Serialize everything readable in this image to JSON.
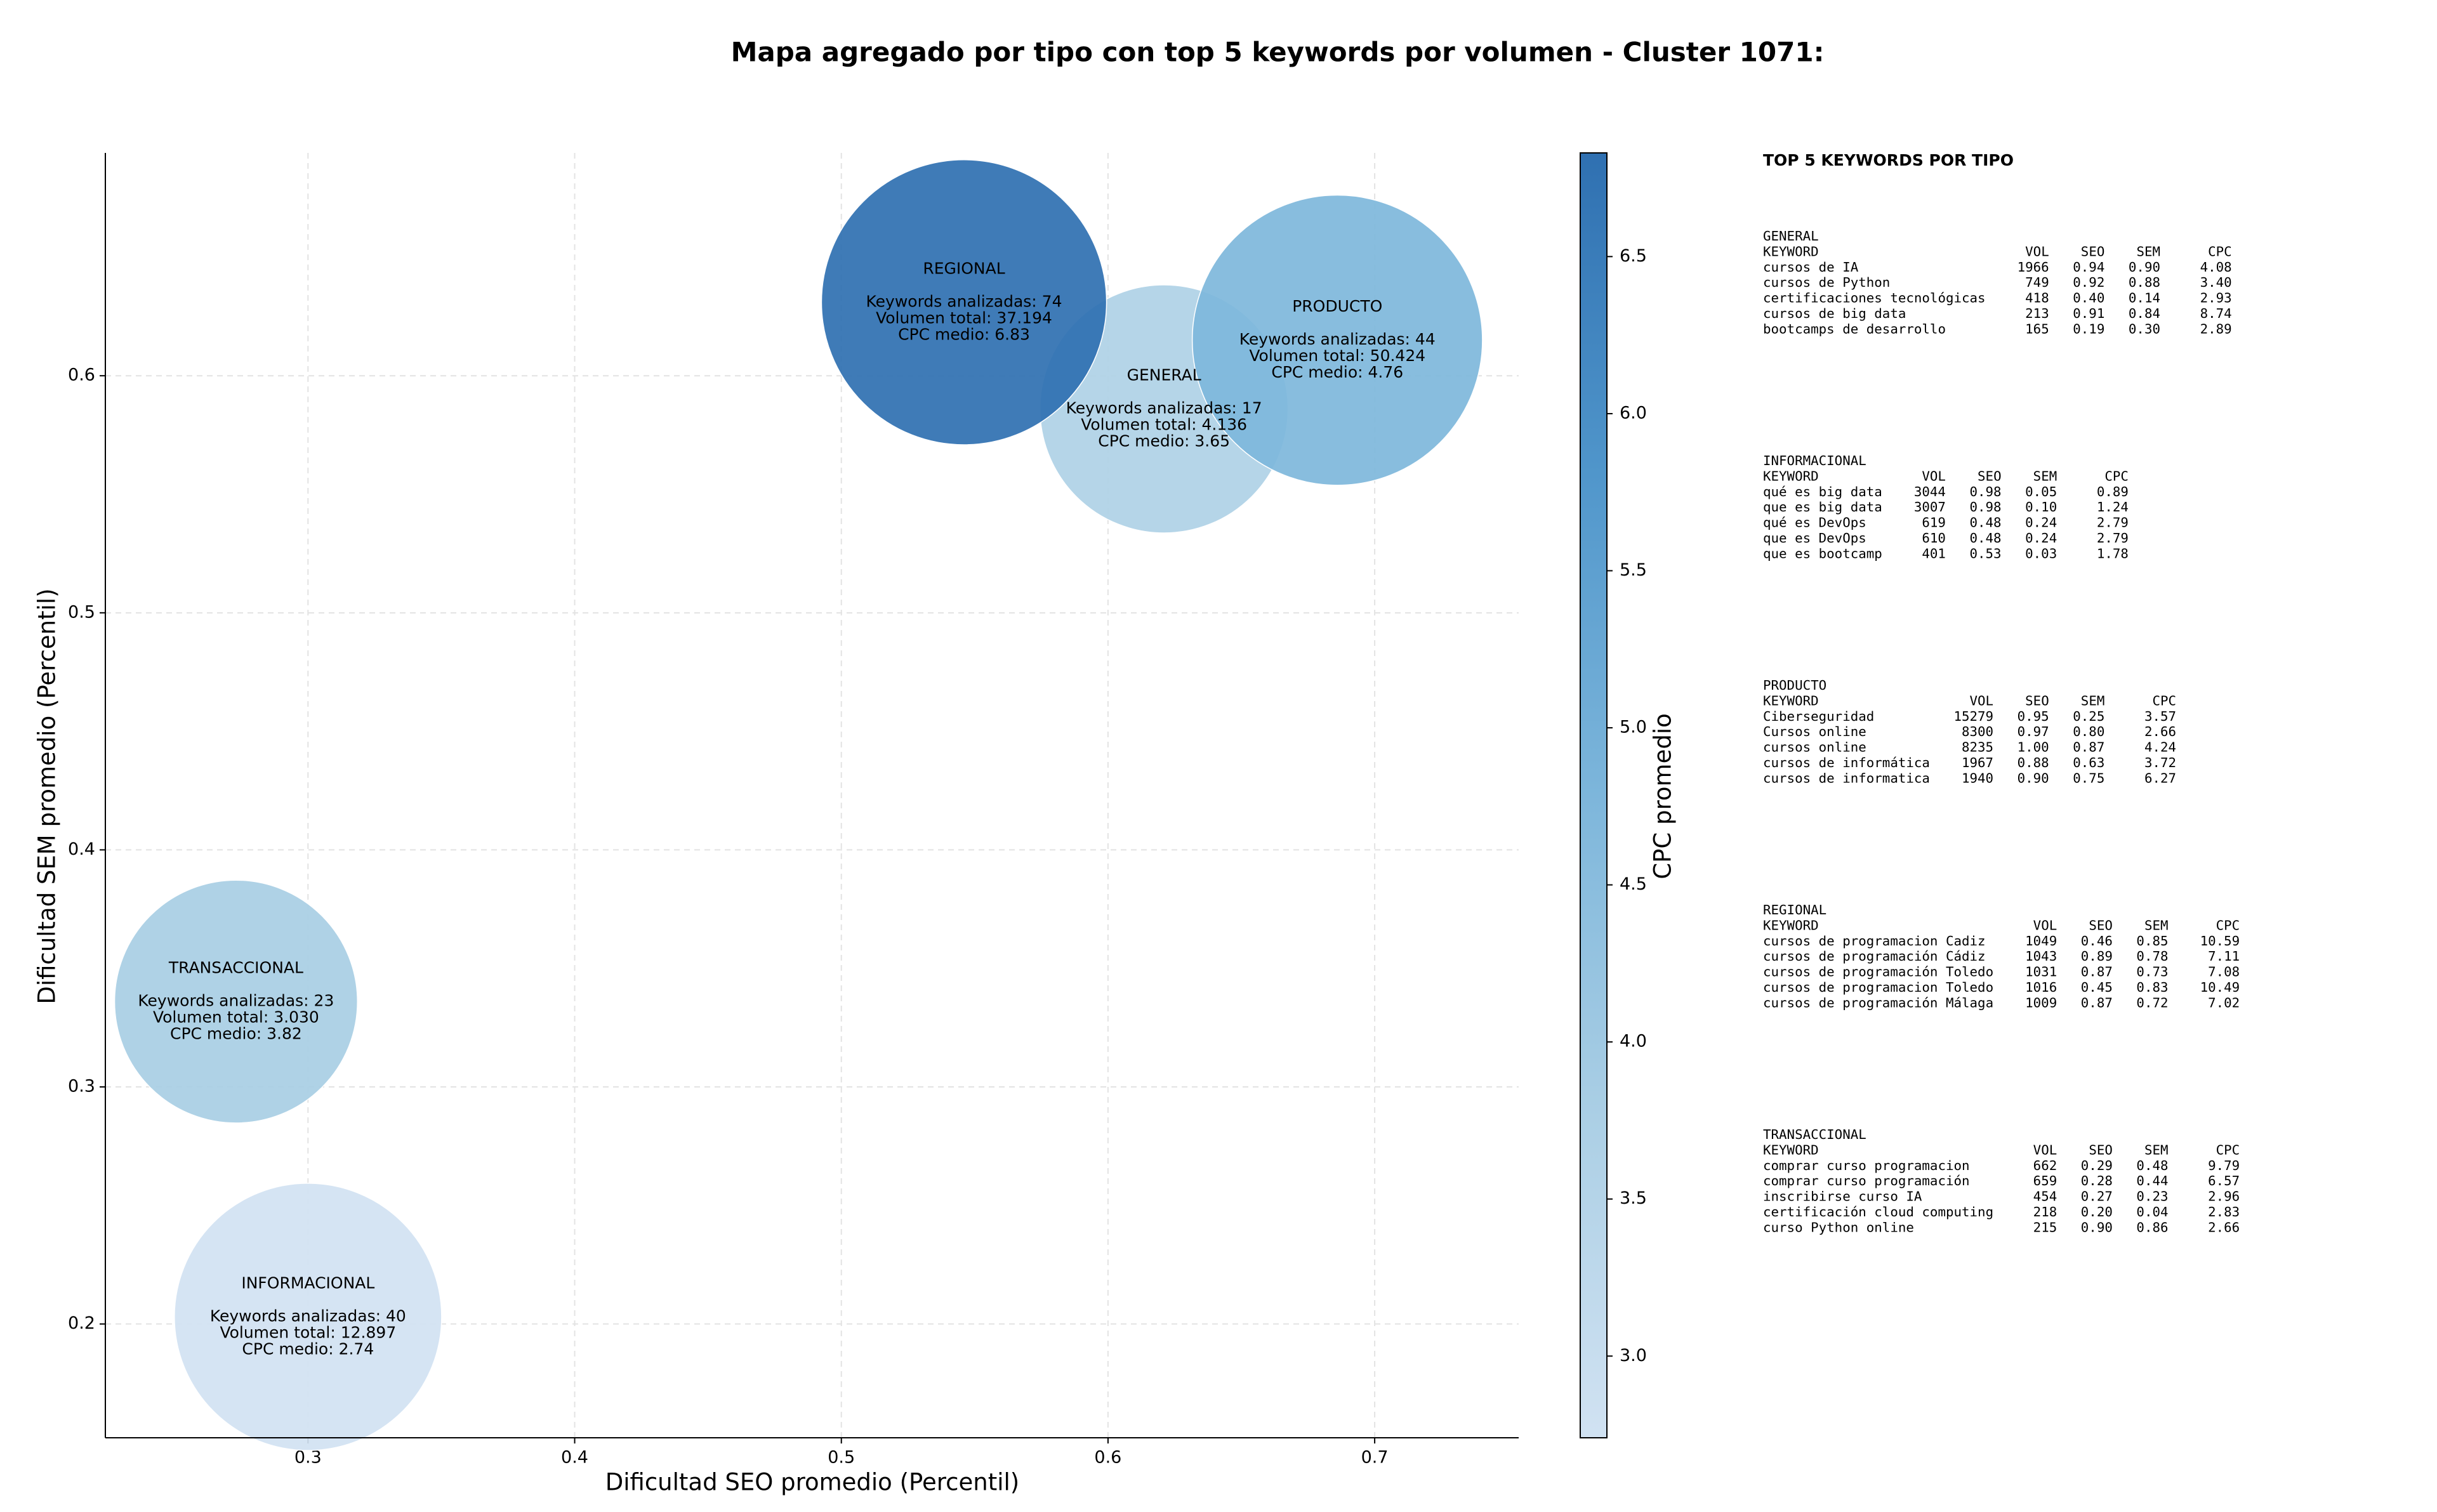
{
  "chart_data": {
    "type": "bubble",
    "title": "Mapa agregado por tipo con top 5 keywords por volumen - Cluster 1071:",
    "xlabel": "Dificultad SEO promedio (Percentil)",
    "ylabel": "Dificultad SEM promedio (Percentil)",
    "colorbar_label": "CPC promedio",
    "labels": [
      "GENERAL",
      "INFORMACIONAL",
      "PRODUCTO",
      "REGIONAL",
      "TRANSACCIONAL"
    ],
    "x": [
      0.621,
      0.3,
      0.686,
      0.546,
      0.273
    ],
    "y": [
      0.586,
      0.203,
      0.615,
      0.631,
      0.336
    ],
    "sizes": [
      4136,
      12897,
      50424,
      37194,
      3030
    ],
    "cpc": [
      3.65,
      2.74,
      4.76,
      6.83,
      3.82
    ],
    "annotations": [
      [
        "Keywords analizadas: 17",
        "Volumen total: 4.136",
        "CPC medio: 3.65"
      ],
      [
        "Keywords analizadas: 40",
        "Volumen total: 12.897",
        "CPC medio: 2.74"
      ],
      [
        "Keywords analizadas: 44",
        "Volumen total: 50.424",
        "CPC medio: 4.76"
      ],
      [
        "Keywords analizadas: 74",
        "Volumen total: 37.194",
        "CPC medio: 6.83"
      ],
      [
        "Keywords analizadas: 23",
        "Volumen total: 3.030",
        "CPC medio: 3.82"
      ]
    ],
    "xlim": [
      0.224,
      0.754
    ],
    "xticks": [
      0.3,
      0.4,
      0.5,
      0.6,
      0.7
    ],
    "ylim": [
      0.152,
      0.694
    ],
    "yticks": [
      0.2,
      0.3,
      0.4,
      0.5,
      0.6
    ],
    "clim": [
      2.74,
      6.83
    ],
    "cticks": [
      {
        "value": 3,
        "label": "3.0"
      },
      3.5,
      {
        "value": 4,
        "label": "4.0"
      },
      4.5,
      {
        "value": 5,
        "label": "5.0"
      },
      5.5,
      {
        "value": 6,
        "label": "6.0"
      },
      6.5
    ],
    "colormap": [
      "#d1e2f2",
      "#abcfe5",
      "#7db6db",
      "#5096cb",
      "#2f70b1"
    ],
    "grid": true
  },
  "side_table": {
    "title": "TOP 5 KEYWORDS POR TIPO",
    "columns": [
      "KEYWORD",
      "VOL",
      "SEO",
      "SEM",
      "CPC"
    ],
    "groups": [
      {
        "name": "GENERAL",
        "rows": [
          [
            "cursos de IA",
            "1966",
            "0.94",
            "0.90",
            "4.08"
          ],
          [
            "cursos de Python",
            "749",
            "0.92",
            "0.88",
            "3.40"
          ],
          [
            "certificaciones tecnológicas",
            "418",
            "0.40",
            "0.14",
            "2.93"
          ],
          [
            "cursos de big data",
            "213",
            "0.91",
            "0.84",
            "8.74"
          ],
          [
            "bootcamps de desarrollo",
            "165",
            "0.19",
            "0.30",
            "2.89"
          ]
        ]
      },
      {
        "name": "INFORMACIONAL",
        "rows": [
          [
            "qué es big data",
            "3044",
            "0.98",
            "0.05",
            "0.89"
          ],
          [
            "que es big data",
            "3007",
            "0.98",
            "0.10",
            "1.24"
          ],
          [
            "qué es DevOps",
            "619",
            "0.48",
            "0.24",
            "2.79"
          ],
          [
            "que es DevOps",
            "610",
            "0.48",
            "0.24",
            "2.79"
          ],
          [
            "que es bootcamp",
            "401",
            "0.53",
            "0.03",
            "1.78"
          ]
        ]
      },
      {
        "name": "PRODUCTO",
        "rows": [
          [
            "Ciberseguridad",
            "15279",
            "0.95",
            "0.25",
            "3.57"
          ],
          [
            "Cursos online",
            "8300",
            "0.97",
            "0.80",
            "2.66"
          ],
          [
            "cursos online",
            "8235",
            "1.00",
            "0.87",
            "4.24"
          ],
          [
            "cursos de informática",
            "1967",
            "0.88",
            "0.63",
            "3.72"
          ],
          [
            "cursos de informatica",
            "1940",
            "0.90",
            "0.75",
            "6.27"
          ]
        ]
      },
      {
        "name": "REGIONAL",
        "rows": [
          [
            "cursos de programacion Cadiz",
            "1049",
            "0.46",
            "0.85",
            "10.59"
          ],
          [
            "cursos de programación Cádiz",
            "1043",
            "0.89",
            "0.78",
            "7.11"
          ],
          [
            "cursos de programación Toledo",
            "1031",
            "0.87",
            "0.73",
            "7.08"
          ],
          [
            "cursos de programacion Toledo",
            "1016",
            "0.45",
            "0.83",
            "10.49"
          ],
          [
            "cursos de programación Málaga",
            "1009",
            "0.87",
            "0.72",
            "7.02"
          ]
        ]
      },
      {
        "name": "TRANSACCIONAL",
        "rows": [
          [
            "comprar curso programacion",
            "662",
            "0.29",
            "0.48",
            "9.79"
          ],
          [
            "comprar curso programación",
            "659",
            "0.28",
            "0.44",
            "6.57"
          ],
          [
            "inscribirse curso IA",
            "454",
            "0.27",
            "0.23",
            "2.96"
          ],
          [
            "certificación cloud computing",
            "218",
            "0.20",
            "0.04",
            "2.83"
          ],
          [
            "curso Python online",
            "215",
            "0.90",
            "0.86",
            "2.66"
          ]
        ]
      }
    ]
  }
}
